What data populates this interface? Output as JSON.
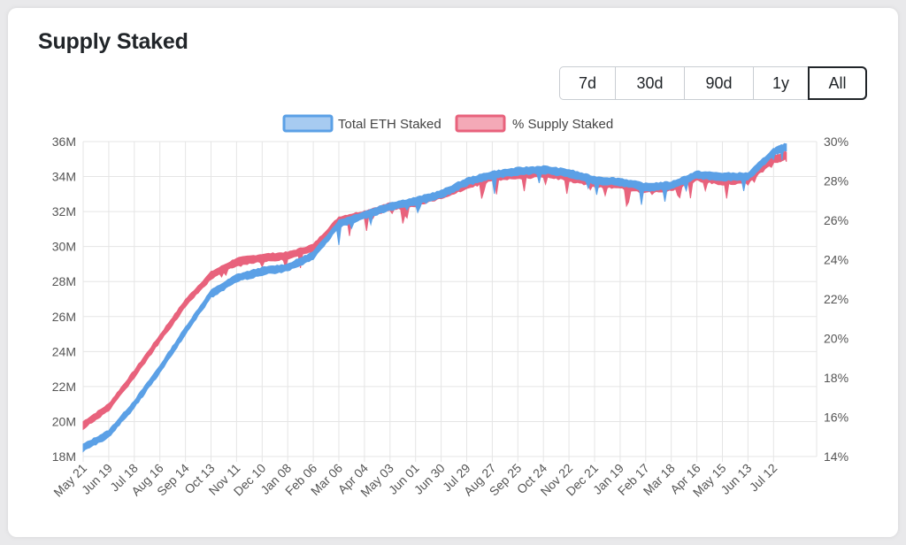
{
  "card": {
    "title": "Supply Staked"
  },
  "range_buttons": [
    {
      "label": "7d",
      "active": false
    },
    {
      "label": "30d",
      "active": false
    },
    {
      "label": "90d",
      "active": false
    },
    {
      "label": "1y",
      "active": false
    },
    {
      "label": "All",
      "active": true
    }
  ],
  "colors": {
    "total_eth": "#5ba0e6",
    "total_eth_fill": "#a7cbf1",
    "supply_pct": "#e8627c",
    "supply_pct_fill": "#f4a9b7",
    "grid": "#e5e5e5"
  },
  "chart_data": {
    "type": "area",
    "title": "",
    "legend_placement": "top",
    "grid": true,
    "x_ticks": [
      "May 21",
      "Jun 19",
      "Jul 18",
      "Aug 16",
      "Sep 14",
      "Oct 13",
      "Nov 11",
      "Dec 10",
      "Jan 08",
      "Feb 06",
      "Mar 06",
      "Apr 04",
      "May 03",
      "Jun 01",
      "Jun 30",
      "Jul 29",
      "Aug 27",
      "Sep 25",
      "Oct 24",
      "Nov 22",
      "Dec 21",
      "Jan 19",
      "Feb 17",
      "Mar 18",
      "Apr 16",
      "May 15",
      "Jun 13",
      "Jul 12"
    ],
    "y_left": {
      "min": 18,
      "max": 36,
      "ticks": [
        "18M",
        "20M",
        "22M",
        "24M",
        "26M",
        "28M",
        "30M",
        "32M",
        "34M",
        "36M"
      ],
      "unit": "M"
    },
    "y_right": {
      "min": 14,
      "max": 30,
      "ticks": [
        "14%",
        "16%",
        "18%",
        "20%",
        "22%",
        "24%",
        "26%",
        "28%",
        "30%"
      ],
      "unit": "%"
    },
    "series": [
      {
        "name": "Total ETH Staked",
        "axis": "left",
        "x_index": [
          0,
          1,
          2,
          3,
          4,
          5,
          6,
          7,
          8,
          9,
          10,
          11,
          12,
          13,
          14,
          15,
          16,
          17,
          18,
          19,
          20,
          21,
          22,
          23,
          24,
          25,
          26,
          27,
          27.5
        ],
        "values": [
          18.5,
          19.3,
          21.0,
          23.0,
          25.2,
          27.3,
          28.2,
          28.6,
          28.8,
          29.5,
          31.3,
          31.8,
          32.3,
          32.6,
          33.0,
          33.7,
          34.1,
          34.3,
          34.4,
          34.2,
          33.8,
          33.7,
          33.4,
          33.5,
          34.1,
          34.0,
          34.0,
          35.4,
          35.7
        ]
      },
      {
        "name": "% Supply Staked",
        "axis": "right",
        "x_index": [
          0,
          1,
          2,
          3,
          4,
          5,
          6,
          7,
          8,
          9,
          10,
          11,
          12,
          13,
          14,
          15,
          16,
          17,
          18,
          19,
          20,
          21,
          22,
          23,
          24,
          25,
          26,
          27,
          27.5
        ],
        "values": [
          15.6,
          16.5,
          18.2,
          20.0,
          21.8,
          23.2,
          23.9,
          24.1,
          24.2,
          24.6,
          26.0,
          26.3,
          26.7,
          26.9,
          27.3,
          27.8,
          28.2,
          28.3,
          28.4,
          28.2,
          27.9,
          27.8,
          27.6,
          27.7,
          28.2,
          28.0,
          28.1,
          29.1,
          29.3
        ]
      }
    ]
  }
}
